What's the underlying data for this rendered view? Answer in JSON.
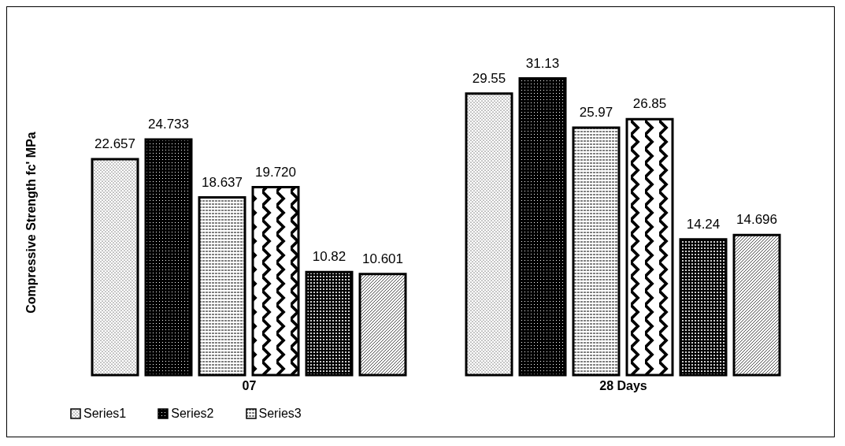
{
  "chart_data": {
    "type": "bar",
    "ylabel": "Compressive Strength fc' MPa",
    "categories": [
      "07",
      "28 Days"
    ],
    "legend": "bottom left",
    "series": [
      {
        "name": "Series1",
        "color": "#000000",
        "values": [
          22.657,
          29.55
        ],
        "value_labels": [
          "22.657",
          "29.55"
        ]
      },
      {
        "name": "Series2",
        "color": "#000000",
        "values": [
          24.733,
          31.13
        ],
        "value_labels": [
          "24.733",
          "31.13"
        ]
      },
      {
        "name": "Series3",
        "color": "#000000",
        "values": [
          18.637,
          25.97
        ],
        "value_labels": [
          "18.637",
          "25.97"
        ]
      },
      {
        "color": "#000000",
        "values": [
          19.72,
          26.85
        ],
        "value_labels": [
          "19.720",
          "26.85"
        ]
      },
      {
        "color": "#000000",
        "values": [
          10.82,
          14.24
        ],
        "value_labels": [
          "10.82",
          "14.24"
        ]
      },
      {
        "color": "#000000",
        "values": [
          10.601,
          14.696
        ],
        "value_labels": [
          "10.601",
          "14.696"
        ]
      }
    ]
  }
}
